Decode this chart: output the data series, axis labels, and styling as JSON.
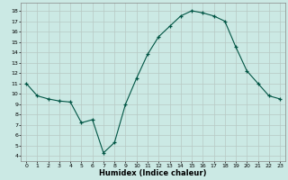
{
  "xlabel": "Humidex (Indice chaleur)",
  "ylabel": "",
  "bg_color": "#cbe9e4",
  "grid_color": "#b8c8c4",
  "line_color": "#005544",
  "marker_color": "#005544",
  "xlim": [
    -0.5,
    23.5
  ],
  "ylim": [
    3.5,
    18.8
  ],
  "yticks": [
    4,
    5,
    6,
    7,
    8,
    9,
    10,
    11,
    12,
    13,
    14,
    15,
    16,
    17,
    18
  ],
  "xticks": [
    0,
    1,
    2,
    3,
    4,
    5,
    6,
    7,
    8,
    9,
    10,
    11,
    12,
    13,
    14,
    15,
    16,
    17,
    18,
    19,
    20,
    21,
    22,
    23
  ],
  "data_x": [
    0,
    1,
    2,
    3,
    4,
    5,
    6,
    7,
    8,
    9,
    10,
    11,
    12,
    13,
    14,
    15,
    16,
    17,
    18,
    19,
    20,
    21,
    22,
    23
  ],
  "data_y": [
    11.0,
    9.8,
    9.5,
    9.3,
    9.2,
    7.2,
    7.5,
    4.3,
    5.3,
    9.0,
    11.5,
    13.8,
    15.5,
    16.5,
    17.5,
    18.0,
    17.8,
    17.5,
    17.0,
    14.5,
    12.2,
    11.0,
    9.8,
    9.5
  ]
}
